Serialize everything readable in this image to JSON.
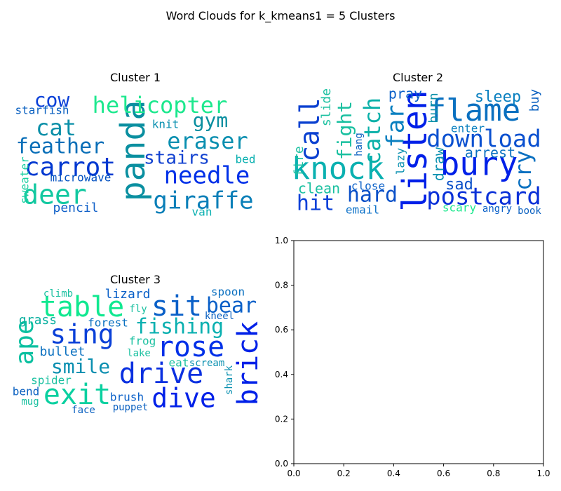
{
  "figure": {
    "title": "Word Clouds for k_kmeans1 = 5 Clusters"
  },
  "chart_data": [
    {
      "type": "wordcloud",
      "title": "Cluster 1",
      "words": [
        "panda",
        "helicopter",
        "deer",
        "needle",
        "giraffe",
        "carrot",
        "eraser",
        "cow",
        "cat",
        "feather",
        "gym",
        "stairs",
        "microwave",
        "starfish",
        "knit",
        "bed",
        "pencil",
        "sweater",
        "van"
      ]
    },
    {
      "type": "wordcloud",
      "title": "Cluster 2",
      "words": [
        "listen",
        "knock",
        "flame",
        "bury",
        "download",
        "postcard",
        "call",
        "fight",
        "catch",
        "far",
        "cry",
        "hit",
        "hard",
        "sleep",
        "pray",
        "clean",
        "fire",
        "slide",
        "burn",
        "arrest",
        "sad",
        "draw",
        "buy",
        "enter",
        "hang",
        "lazy",
        "close",
        "email",
        "scary",
        "angry",
        "book"
      ]
    },
    {
      "type": "wordcloud",
      "title": "Cluster 3",
      "words": [
        "table",
        "sit",
        "sing",
        "rose",
        "drive",
        "dive",
        "brick",
        "ape",
        "exit",
        "bear",
        "fishing",
        "smile",
        "bullet",
        "grass",
        "forest",
        "lizard",
        "spoon",
        "climb",
        "fly",
        "kneel",
        "frog",
        "lake",
        "eat",
        "scream",
        "shark",
        "spider",
        "brush",
        "bend",
        "mug",
        "puppet",
        "face"
      ]
    },
    {
      "type": "empty_axes",
      "xlim": [
        0,
        1
      ],
      "ylim": [
        0,
        1
      ],
      "xticks": [
        "0.0",
        "0.2",
        "0.4",
        "0.6",
        "0.8",
        "1.0"
      ],
      "yticks": [
        "0.0",
        "0.2",
        "0.4",
        "0.6",
        "0.8",
        "1.0"
      ]
    }
  ]
}
